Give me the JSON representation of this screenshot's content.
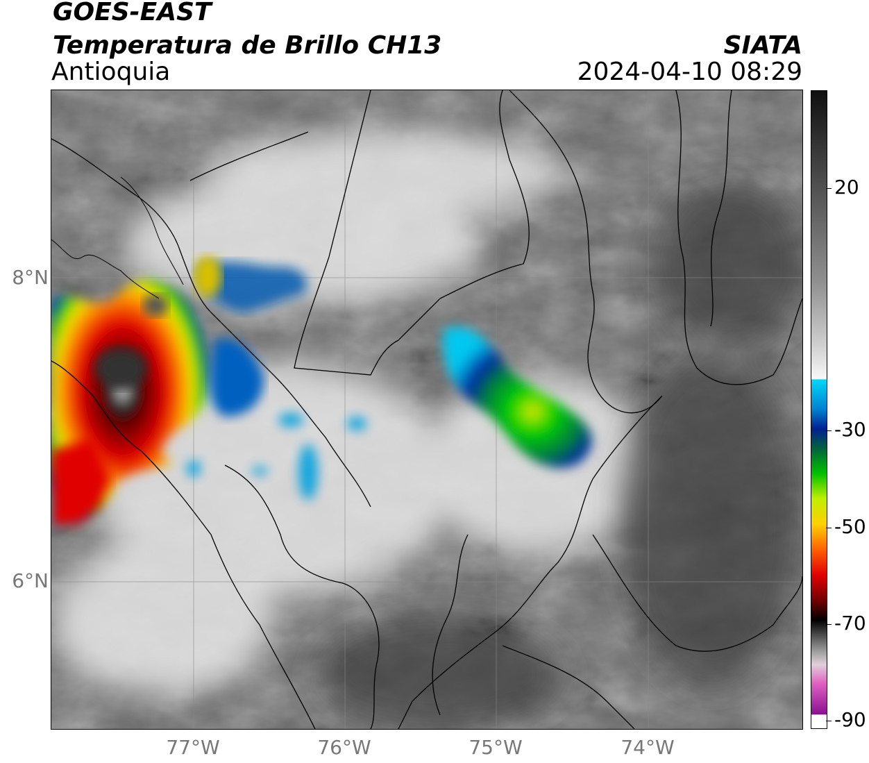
{
  "header": {
    "line1": "GOES-EAST",
    "line2": "Temperatura de Brillo CH13",
    "line3": "Antioquia",
    "agency": "SIATA",
    "datetime": "2024-04-10 08:29"
  },
  "axes": {
    "y_labels": [
      "8°N",
      "6°N"
    ],
    "x_labels": [
      "77°W",
      "76°W",
      "75°W",
      "74°W"
    ]
  },
  "colorbar": {
    "labels": [
      "20",
      "-30",
      "-50",
      "-70",
      "-90"
    ]
  },
  "colors": {
    "cold_cyan": "#00c8f0",
    "deep_blue": "#002a9a",
    "green": "#00c000",
    "yellow": "#e8e800",
    "orange": "#ff8a00",
    "red": "#e00000",
    "dark_red": "#600000",
    "magenta": "#c040c0"
  }
}
